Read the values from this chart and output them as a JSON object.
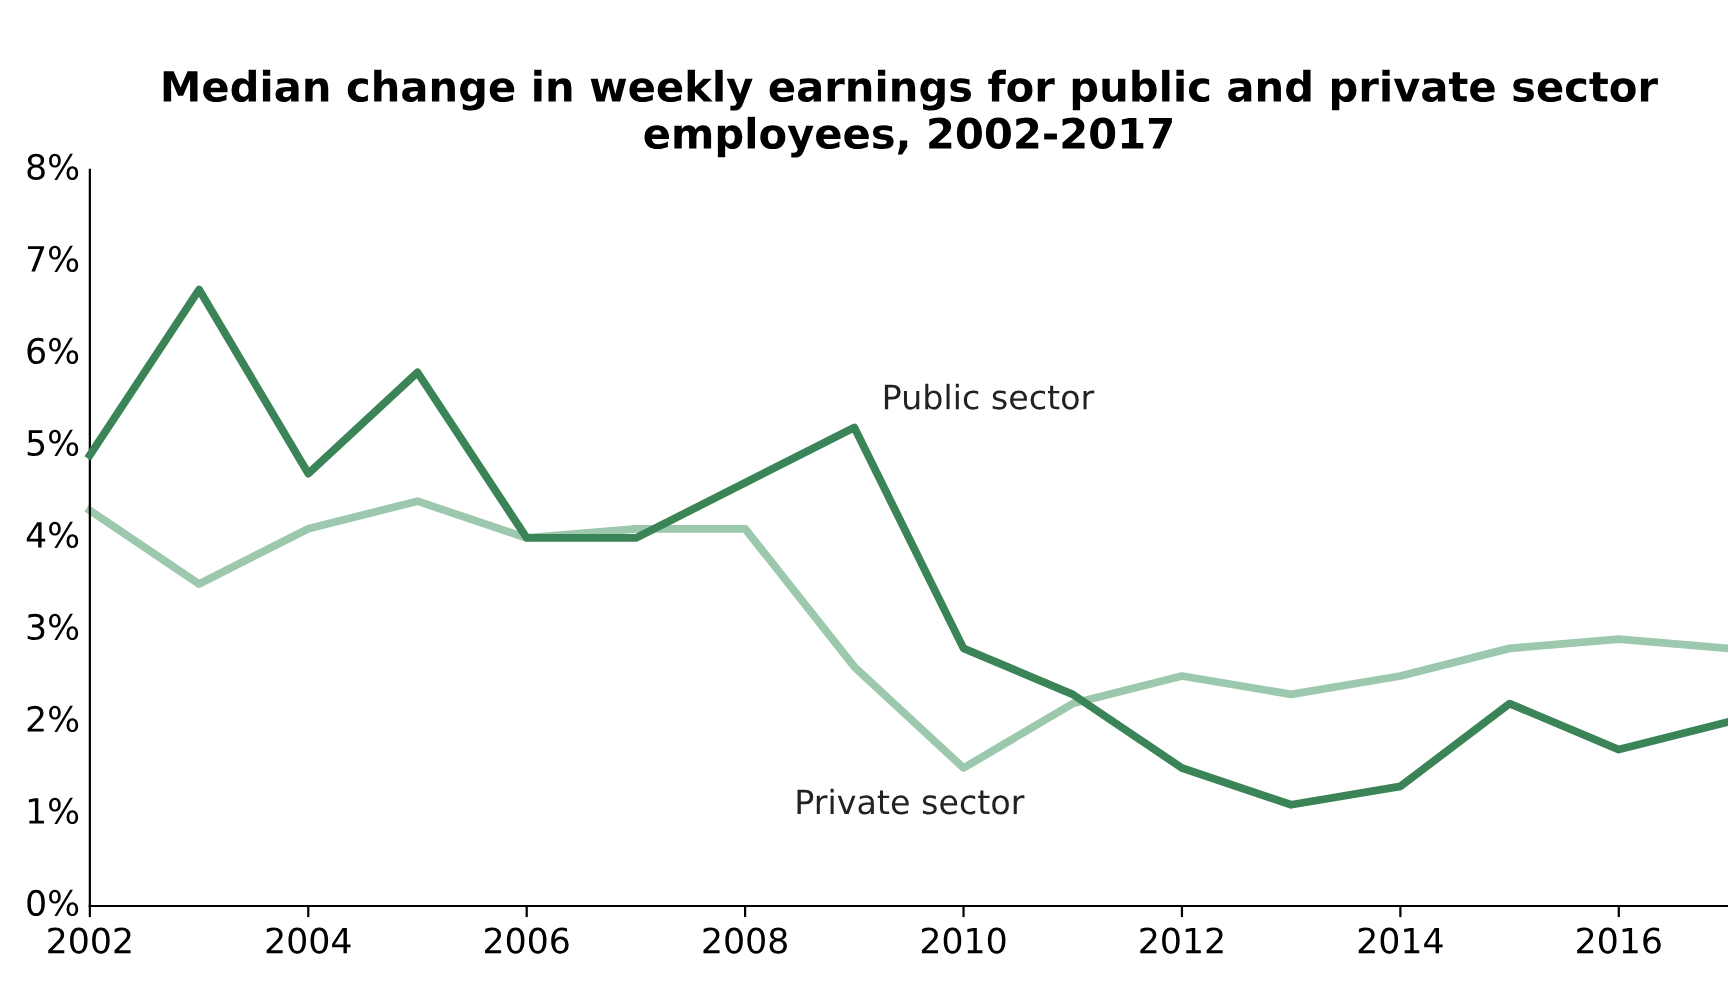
{
  "chart_data": {
    "type": "line",
    "title": "Median change in weekly earnings for public and private sector employees, 2002-2017",
    "x": [
      2002,
      2003,
      2004,
      2005,
      2006,
      2007,
      2008,
      2009,
      2010,
      2011,
      2012,
      2013,
      2014,
      2015,
      2016,
      2017
    ],
    "series": [
      {
        "name": "Public sector",
        "color": "#3a8458",
        "values": [
          4.9,
          6.7,
          4.7,
          5.8,
          4.0,
          4.0,
          4.6,
          5.2,
          2.8,
          2.3,
          1.5,
          1.1,
          1.3,
          2.2,
          1.7,
          2.0
        ]
      },
      {
        "name": "Private sector",
        "color": "#9cc8ad",
        "values": [
          4.3,
          3.5,
          4.1,
          4.4,
          4.0,
          4.1,
          4.1,
          2.6,
          1.5,
          2.2,
          2.5,
          2.3,
          2.5,
          2.8,
          2.9,
          2.8
        ]
      }
    ],
    "xlim": [
      2002,
      2017
    ],
    "xticks": [
      2002,
      2004,
      2006,
      2008,
      2010,
      2012,
      2014,
      2016
    ],
    "ylim": [
      0,
      8
    ],
    "yticks": [
      {
        "value": 0,
        "label": "0%"
      },
      {
        "value": 1,
        "label": "1%"
      },
      {
        "value": 2,
        "label": "2%"
      },
      {
        "value": 3,
        "label": "3%"
      },
      {
        "value": 4,
        "label": "4%"
      },
      {
        "value": 5,
        "label": "5%"
      },
      {
        "value": 6,
        "label": "6%"
      },
      {
        "value": 7,
        "label": "7%"
      },
      {
        "value": 8,
        "label": "8%"
      }
    ],
    "grid": false,
    "legend": false,
    "marker": "none",
    "line_style": "solid"
  }
}
